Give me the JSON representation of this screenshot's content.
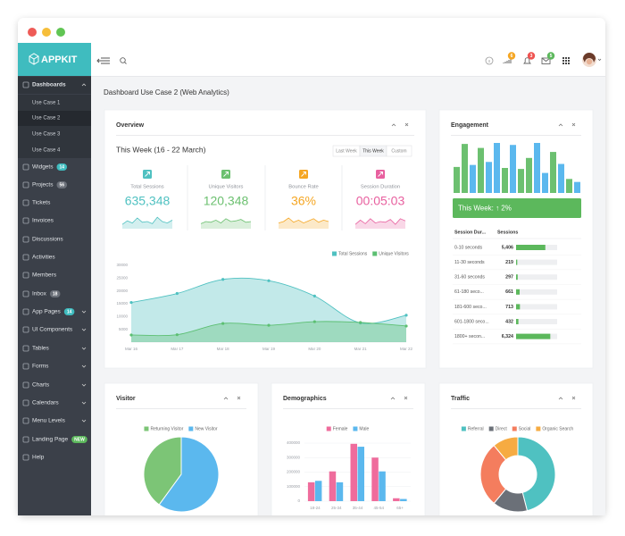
{
  "app": {
    "logo": "APPKIT"
  },
  "sidebar": {
    "items": [
      {
        "label": "Dashboards",
        "children": [
          "Use Case 1",
          "Use Case 2",
          "Use Case 3",
          "Use Case 4"
        ]
      },
      {
        "label": "Widgets",
        "badge": 14,
        "badge_color": "#3fbcbf"
      },
      {
        "label": "Projects",
        "badge": 56,
        "badge_color": "#6b7079"
      },
      {
        "label": "Tickets"
      },
      {
        "label": "Invoices"
      },
      {
        "label": "Discussions"
      },
      {
        "label": "Activities"
      },
      {
        "label": "Members"
      },
      {
        "label": "Inbox",
        "badge": 18,
        "badge_color": "#6b7079"
      },
      {
        "label": "App Pages",
        "badge": 14,
        "badge_color": "#3fbcbf"
      },
      {
        "label": "UI Components"
      },
      {
        "label": "Tables"
      },
      {
        "label": "Forms"
      },
      {
        "label": "Charts"
      },
      {
        "label": "Calendars"
      },
      {
        "label": "Menu Levels"
      },
      {
        "label": "Landing Page",
        "badge": "NEW",
        "badge_color": "#5cb85c"
      },
      {
        "label": "Help"
      }
    ]
  },
  "topbar": {
    "badges": [
      {
        "value": 6,
        "color": "#f5a623"
      },
      {
        "value": 3,
        "color": "#ef5350"
      },
      {
        "value": 5,
        "color": "#5cb85c"
      }
    ]
  },
  "page_title": "Dashboard Use Case 2 (Web Analytics)",
  "overview": {
    "title": "Overview",
    "period": "This Week (16 - 22 March)",
    "tabs": [
      "Last Week",
      "This Week",
      "Custom"
    ],
    "stats": [
      {
        "label": "Total Sessions",
        "value": "635,348",
        "color": "#4fc1c1"
      },
      {
        "label": "Unique Visitors",
        "value": "120,348",
        "color": "#6cc070"
      },
      {
        "label": "Bounce Rate",
        "value": "36%",
        "color": "#f5a623"
      },
      {
        "label": "Session Duration",
        "value": "00:05:03",
        "color": "#e8609f"
      }
    ]
  },
  "engagement": {
    "title": "Engagement",
    "summary": "This Week: ↑ 2%",
    "table": {
      "headers": [
        "Session Dur...",
        "Sessions"
      ],
      "ranges": [
        "0-10 seconds",
        "11-30 seconds",
        "31-60 seconds",
        "61-180 seco...",
        "181-600 seco...",
        "601-1800 seco...",
        "1800+ secon..."
      ],
      "values": [
        5406,
        219,
        297,
        661,
        713,
        432,
        6324
      ],
      "value_labels": [
        "5,406",
        "219",
        "297",
        "661",
        "713",
        "432",
        "6,324"
      ]
    }
  },
  "chart_data": [
    {
      "type": "area",
      "categories": [
        "Mar 16",
        "Mar 17",
        "Mar 18",
        "Mar 19",
        "Mar 20",
        "Mar 21",
        "Mar 22"
      ],
      "series": [
        {
          "name": "Total Sessions",
          "color": "#4fc1c1",
          "values": [
            15500,
            19000,
            24500,
            24000,
            18000,
            7500,
            10500
          ]
        },
        {
          "name": "Unique Visitors",
          "color": "#5cbf72",
          "values": [
            2800,
            2900,
            7300,
            6600,
            8000,
            7700,
            6300
          ]
        }
      ],
      "ylim": [
        0,
        30000
      ],
      "yticks": [
        5000,
        10000,
        15000,
        20000,
        25000,
        30000
      ]
    },
    {
      "type": "bar",
      "values": [
        52,
        98,
        56,
        90,
        62,
        100,
        50,
        96,
        48,
        70,
        100,
        40,
        82,
        58,
        28,
        22
      ],
      "colors": [
        "#6cc070",
        "#6cc070",
        "#5bb8ee",
        "#6cc070",
        "#5bb8ee",
        "#5bb8ee",
        "#6cc070",
        "#5bb8ee",
        "#6cc070",
        "#6cc070",
        "#5bb8ee",
        "#5bb8ee",
        "#6cc070",
        "#5bb8ee",
        "#6cc070",
        "#5bb8ee"
      ],
      "ylim": [
        0,
        100
      ]
    },
    {
      "type": "pie",
      "title": "Visitor",
      "categories": [
        "Returning Visitor",
        "New Visitor"
      ],
      "values": [
        40,
        60
      ],
      "colors": [
        "#7cc576",
        "#5bb8ee"
      ]
    },
    {
      "type": "bar",
      "title": "Demographics",
      "categories": [
        "18-24",
        "25-34",
        "35-44",
        "45-54",
        "65+"
      ],
      "series": [
        {
          "name": "Female",
          "color": "#ef6c9c",
          "values": [
            130000,
            205000,
            395000,
            300000,
            20000
          ]
        },
        {
          "name": "Male",
          "color": "#5bb8ee",
          "values": [
            140000,
            130000,
            375000,
            205000,
            15000
          ]
        }
      ],
      "ylim": [
        0,
        400000
      ],
      "yticks": [
        0,
        100000,
        200000,
        300000,
        400000
      ]
    },
    {
      "type": "donut",
      "title": "Traffic",
      "categories": [
        "Referral",
        "Direct",
        "Social",
        "Organic Search"
      ],
      "values": [
        46,
        15,
        28,
        11
      ],
      "colors": [
        "#4fc1c1",
        "#6b7078",
        "#f47d5e",
        "#f6ab42"
      ]
    }
  ]
}
